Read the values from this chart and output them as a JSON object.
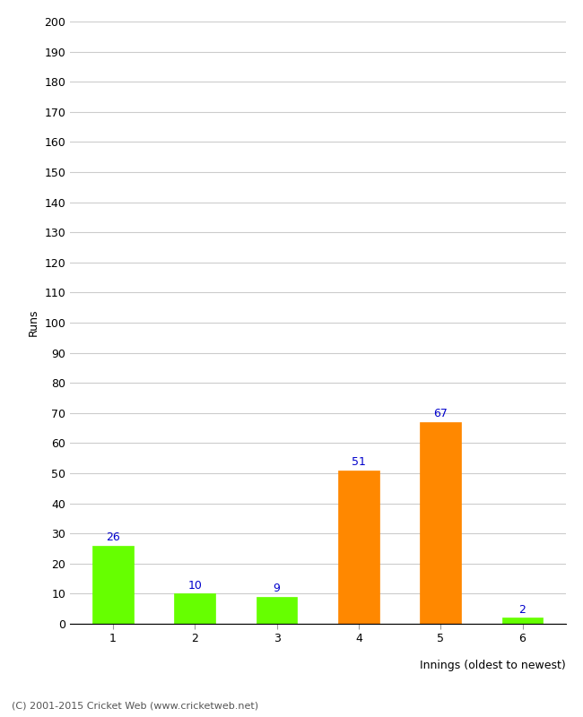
{
  "xlabel": "Innings (oldest to newest)",
  "ylabel": "Runs",
  "categories": [
    "1",
    "2",
    "3",
    "4",
    "5",
    "6"
  ],
  "values": [
    26,
    10,
    9,
    51,
    67,
    2
  ],
  "bar_colors": [
    "#66ff00",
    "#66ff00",
    "#66ff00",
    "#ff8800",
    "#ff8800",
    "#66ff00"
  ],
  "label_color": "#0000cc",
  "ylim": [
    0,
    200
  ],
  "yticks": [
    0,
    10,
    20,
    30,
    40,
    50,
    60,
    70,
    80,
    90,
    100,
    110,
    120,
    130,
    140,
    150,
    160,
    170,
    180,
    190,
    200
  ],
  "background_color": "#ffffff",
  "footer": "(C) 2001-2015 Cricket Web (www.cricketweb.net)",
  "grid_color": "#cccccc",
  "spine_color": "#000000",
  "tick_label_color": "#000000",
  "ylabel_color": "#000000",
  "bar_width": 0.5
}
